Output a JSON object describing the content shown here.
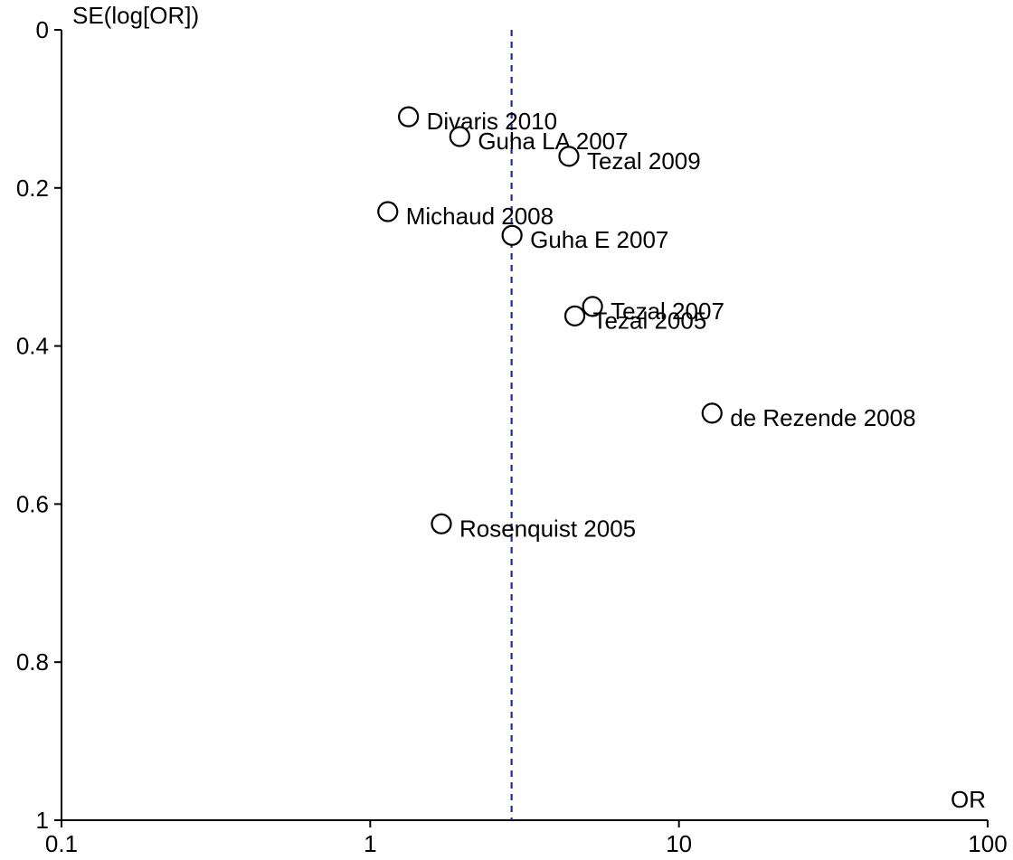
{
  "chart_data": {
    "type": "scatter",
    "title": "",
    "xlabel": "OR",
    "ylabel": "SE(log[OR])",
    "x_scale": "log",
    "xlim": [
      0.1,
      100
    ],
    "ylim": [
      0,
      1
    ],
    "y_inverted": true,
    "grid": false,
    "x_ticks": [
      "0.1",
      "1",
      "10",
      "100"
    ],
    "y_ticks": [
      "0",
      "0.2",
      "0.4",
      "0.6",
      "0.8",
      "1"
    ],
    "reference_line": {
      "x": 2.87,
      "style": "dashed",
      "color": "#1f2f9a"
    },
    "points": [
      {
        "label": "Divaris 2010",
        "x": 1.33,
        "y": 0.11
      },
      {
        "label": "Guha LA 2007",
        "x": 1.95,
        "y": 0.135
      },
      {
        "label": "Tezal 2009",
        "x": 4.4,
        "y": 0.16
      },
      {
        "label": "Michaud 2008",
        "x": 1.14,
        "y": 0.23
      },
      {
        "label": "Guha E 2007",
        "x": 2.88,
        "y": 0.26
      },
      {
        "label": "Tezal 2007",
        "x": 5.25,
        "y": 0.35
      },
      {
        "label": "Tezal 2005",
        "x": 4.6,
        "y": 0.362
      },
      {
        "label": "de Rezende 2008",
        "x": 12.8,
        "y": 0.485
      },
      {
        "label": "Rosenquist 2005",
        "x": 1.7,
        "y": 0.625
      }
    ]
  }
}
